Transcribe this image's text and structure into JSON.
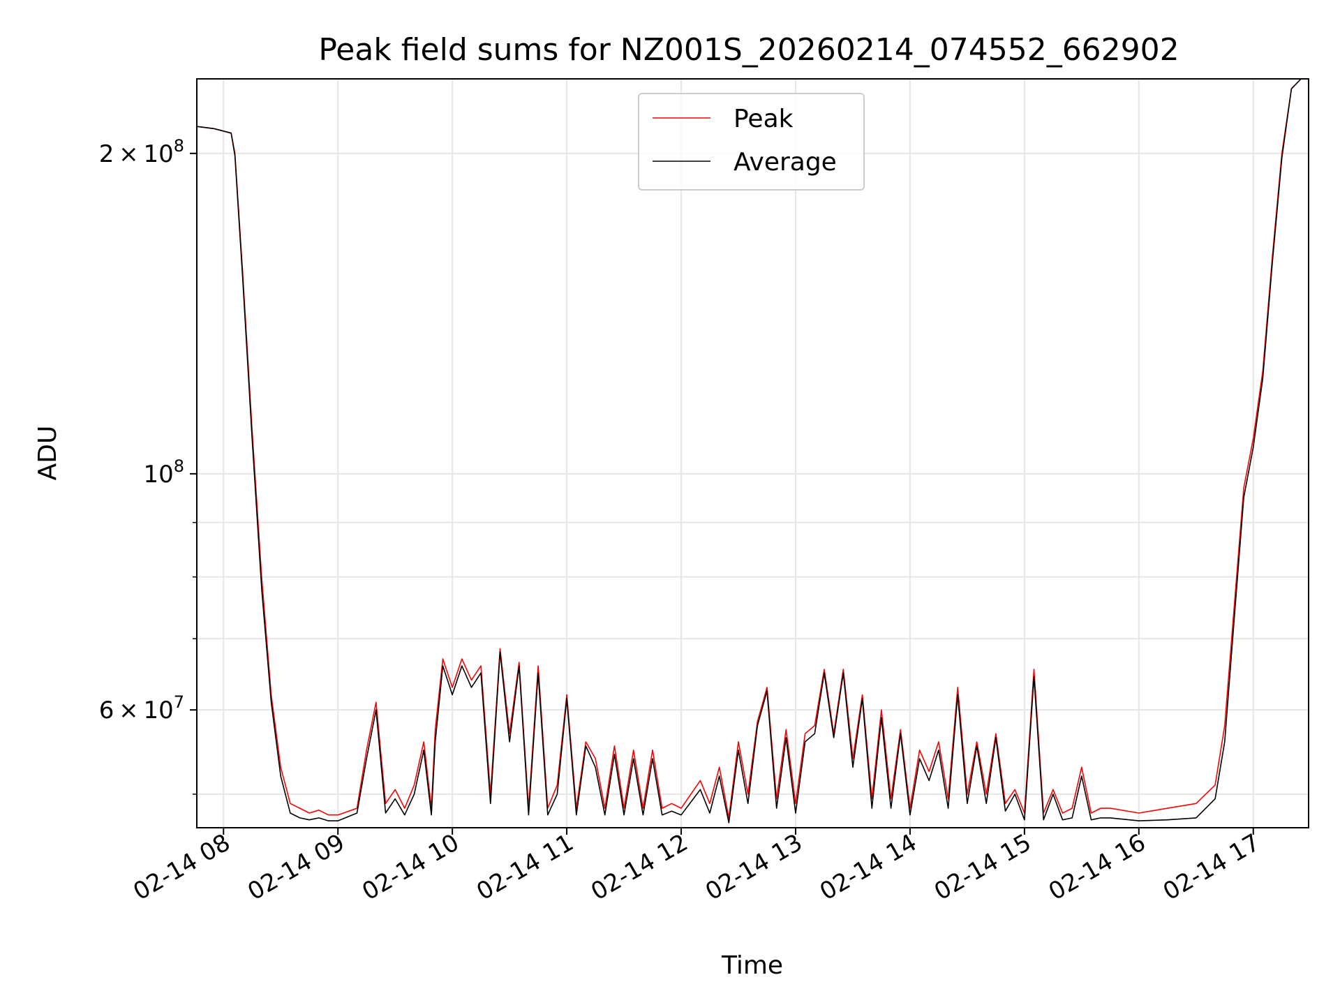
{
  "chart_data": {
    "type": "line",
    "title": "Peak field sums for NZ001S_20260214_074552_662902",
    "xlabel": "Time",
    "ylabel": "ADU",
    "y_scale": "log",
    "ylim": [
      46500000,
      235000000
    ],
    "xlim": [
      "02-14 07:46",
      "02-14 17:29"
    ],
    "x_ticks": [
      "02-14 08:00",
      "02-14 09:00",
      "02-14 10:00",
      "02-14 11:00",
      "02-14 12:00",
      "02-14 13:00",
      "02-14 14:00",
      "02-14 15:00",
      "02-14 16:00",
      "02-14 17:00"
    ],
    "x_tick_labels": [
      "02-14 08",
      "02-14 09",
      "02-14 10",
      "02-14 11",
      "02-14 12",
      "02-14 13",
      "02-14 14",
      "02-14 15",
      "02-14 16",
      "02-14 17"
    ],
    "y_major_ticks": [
      {
        "value": 60000000,
        "mantissa": "6",
        "exponent": "7"
      },
      {
        "value": 100000000,
        "mantissa": "",
        "exponent": "8"
      },
      {
        "value": 200000000,
        "mantissa": "2",
        "exponent": "8"
      }
    ],
    "y_minor_ticks": [
      50000000,
      70000000,
      80000000,
      90000000
    ],
    "tick_times": "×",
    "tick_base": "10",
    "grid": true,
    "legend_position": "top-center",
    "series": [
      {
        "name": "Peak",
        "color": "#ff0000",
        "x": [
          "02-14 07:46",
          "02-14 07:55",
          "02-14 08:04",
          "02-14 08:06",
          "02-14 08:10",
          "02-14 08:15",
          "02-14 08:20",
          "02-14 08:25",
          "02-14 08:30",
          "02-14 08:35",
          "02-14 08:40",
          "02-14 08:45",
          "02-14 08:50",
          "02-14 08:55",
          "02-14 09:00",
          "02-14 09:10",
          "02-14 09:15",
          "02-14 09:20",
          "02-14 09:25",
          "02-14 09:30",
          "02-14 09:35",
          "02-14 09:40",
          "02-14 09:45",
          "02-14 09:49",
          "02-14 09:51",
          "02-14 09:55",
          "02-14 10:00",
          "02-14 10:05",
          "02-14 10:10",
          "02-14 10:15",
          "02-14 10:20",
          "02-14 10:25",
          "02-14 10:30",
          "02-14 10:35",
          "02-14 10:40",
          "02-14 10:45",
          "02-14 10:50",
          "02-14 10:55",
          "02-14 11:00",
          "02-14 11:05",
          "02-14 11:10",
          "02-14 11:15",
          "02-14 11:20",
          "02-14 11:25",
          "02-14 11:30",
          "02-14 11:35",
          "02-14 11:40",
          "02-14 11:45",
          "02-14 11:50",
          "02-14 11:55",
          "02-14 12:00",
          "02-14 12:10",
          "02-14 12:15",
          "02-14 12:20",
          "02-14 12:25",
          "02-14 12:30",
          "02-14 12:35",
          "02-14 12:40",
          "02-14 12:45",
          "02-14 12:50",
          "02-14 12:55",
          "02-14 13:00",
          "02-14 13:05",
          "02-14 13:10",
          "02-14 13:15",
          "02-14 13:20",
          "02-14 13:25",
          "02-14 13:30",
          "02-14 13:35",
          "02-14 13:40",
          "02-14 13:45",
          "02-14 13:50",
          "02-14 13:55",
          "02-14 14:00",
          "02-14 14:05",
          "02-14 14:10",
          "02-14 14:15",
          "02-14 14:20",
          "02-14 14:25",
          "02-14 14:30",
          "02-14 14:35",
          "02-14 14:40",
          "02-14 14:45",
          "02-14 14:50",
          "02-14 14:55",
          "02-14 15:00",
          "02-14 15:05",
          "02-14 15:10",
          "02-14 15:15",
          "02-14 15:20",
          "02-14 15:25",
          "02-14 15:30",
          "02-14 15:35",
          "02-14 15:40",
          "02-14 15:45",
          "02-14 16:00",
          "02-14 16:15",
          "02-14 16:30",
          "02-14 16:40",
          "02-14 16:45",
          "02-14 16:50",
          "02-14 16:55",
          "02-14 17:00",
          "02-14 17:05",
          "02-14 17:10",
          "02-14 17:15",
          "02-14 17:20",
          "02-14 17:25",
          "02-14 17:29"
        ],
        "y": [
          212000000,
          211000000,
          209000000,
          200000000,
          155000000,
          110000000,
          80000000,
          62000000,
          53000000,
          49000000,
          48500000,
          48000000,
          48300000,
          47800000,
          47800000,
          48500000,
          55000000,
          61000000,
          49000000,
          50500000,
          48500000,
          51000000,
          56000000,
          48500000,
          57500000,
          67000000,
          63000000,
          67000000,
          64000000,
          66000000,
          50000000,
          68500000,
          57000000,
          66500000,
          48500000,
          66000000,
          48500000,
          51000000,
          62000000,
          48500000,
          56000000,
          54000000,
          48500000,
          55500000,
          48500000,
          55000000,
          48500000,
          55000000,
          48500000,
          49000000,
          48500000,
          51500000,
          49000000,
          53000000,
          47500000,
          56000000,
          50000000,
          58500000,
          63000000,
          49500000,
          57500000,
          49000000,
          57000000,
          58000000,
          65500000,
          57000000,
          65500000,
          54000000,
          62000000,
          49500000,
          60000000,
          49500000,
          57500000,
          48500000,
          55000000,
          52500000,
          56000000,
          49500000,
          63000000,
          50000000,
          56000000,
          50000000,
          57000000,
          49000000,
          50500000,
          48000000,
          65500000,
          48000000,
          50500000,
          48000000,
          48500000,
          53000000,
          48000000,
          48500000,
          48500000,
          48000000,
          48500000,
          49000000,
          51000000,
          58000000,
          75000000,
          97000000,
          108000000,
          125000000,
          160000000,
          200000000,
          230000000,
          235000000,
          235000000
        ]
      },
      {
        "name": "Average",
        "color": "#000000",
        "x": [
          "02-14 07:46",
          "02-14 07:55",
          "02-14 08:04",
          "02-14 08:06",
          "02-14 08:10",
          "02-14 08:15",
          "02-14 08:20",
          "02-14 08:25",
          "02-14 08:30",
          "02-14 08:35",
          "02-14 08:40",
          "02-14 08:45",
          "02-14 08:50",
          "02-14 08:55",
          "02-14 09:00",
          "02-14 09:10",
          "02-14 09:15",
          "02-14 09:20",
          "02-14 09:25",
          "02-14 09:30",
          "02-14 09:35",
          "02-14 09:40",
          "02-14 09:45",
          "02-14 09:49",
          "02-14 09:51",
          "02-14 09:55",
          "02-14 10:00",
          "02-14 10:05",
          "02-14 10:10",
          "02-14 10:15",
          "02-14 10:20",
          "02-14 10:25",
          "02-14 10:30",
          "02-14 10:35",
          "02-14 10:40",
          "02-14 10:45",
          "02-14 10:50",
          "02-14 10:55",
          "02-14 11:00",
          "02-14 11:05",
          "02-14 11:10",
          "02-14 11:15",
          "02-14 11:20",
          "02-14 11:25",
          "02-14 11:30",
          "02-14 11:35",
          "02-14 11:40",
          "02-14 11:45",
          "02-14 11:50",
          "02-14 11:55",
          "02-14 12:00",
          "02-14 12:10",
          "02-14 12:15",
          "02-14 12:20",
          "02-14 12:25",
          "02-14 12:30",
          "02-14 12:35",
          "02-14 12:40",
          "02-14 12:45",
          "02-14 12:50",
          "02-14 12:55",
          "02-14 13:00",
          "02-14 13:05",
          "02-14 13:10",
          "02-14 13:15",
          "02-14 13:20",
          "02-14 13:25",
          "02-14 13:30",
          "02-14 13:35",
          "02-14 13:40",
          "02-14 13:45",
          "02-14 13:50",
          "02-14 13:55",
          "02-14 14:00",
          "02-14 14:05",
          "02-14 14:10",
          "02-14 14:15",
          "02-14 14:20",
          "02-14 14:25",
          "02-14 14:30",
          "02-14 14:35",
          "02-14 14:40",
          "02-14 14:45",
          "02-14 14:50",
          "02-14 14:55",
          "02-14 15:00",
          "02-14 15:05",
          "02-14 15:10",
          "02-14 15:15",
          "02-14 15:20",
          "02-14 15:25",
          "02-14 15:30",
          "02-14 15:35",
          "02-14 15:40",
          "02-14 15:45",
          "02-14 16:00",
          "02-14 16:15",
          "02-14 16:30",
          "02-14 16:40",
          "02-14 16:45",
          "02-14 16:50",
          "02-14 16:55",
          "02-14 17:00",
          "02-14 17:05",
          "02-14 17:10",
          "02-14 17:15",
          "02-14 17:20",
          "02-14 17:25",
          "02-14 17:29"
        ],
        "y": [
          212000000,
          211000000,
          209000000,
          199000000,
          153000000,
          108000000,
          78000000,
          61000000,
          52000000,
          48000000,
          47500000,
          47300000,
          47500000,
          47200000,
          47200000,
          48000000,
          54000000,
          60000000,
          48000000,
          49500000,
          47800000,
          50000000,
          55000000,
          47800000,
          56000000,
          66000000,
          62000000,
          66000000,
          63000000,
          65000000,
          49000000,
          68000000,
          56000000,
          66000000,
          47800000,
          65000000,
          47800000,
          50000000,
          61500000,
          47800000,
          55500000,
          53000000,
          47800000,
          54500000,
          47800000,
          54000000,
          47800000,
          54000000,
          47800000,
          48200000,
          47800000,
          50500000,
          48000000,
          52000000,
          47000000,
          55000000,
          49000000,
          58000000,
          62500000,
          48500000,
          56500000,
          48000000,
          56000000,
          57000000,
          65000000,
          56500000,
          65000000,
          53000000,
          61500000,
          48500000,
          59000000,
          48500000,
          57000000,
          47800000,
          54000000,
          51500000,
          55000000,
          48500000,
          62000000,
          49000000,
          55500000,
          49000000,
          56500000,
          48200000,
          50000000,
          47300000,
          64500000,
          47300000,
          50000000,
          47300000,
          47500000,
          52000000,
          47300000,
          47500000,
          47500000,
          47200000,
          47300000,
          47500000,
          49500000,
          56000000,
          73000000,
          95000000,
          106000000,
          123000000,
          158000000,
          198000000,
          230000000,
          235000000,
          235000000
        ]
      }
    ]
  }
}
